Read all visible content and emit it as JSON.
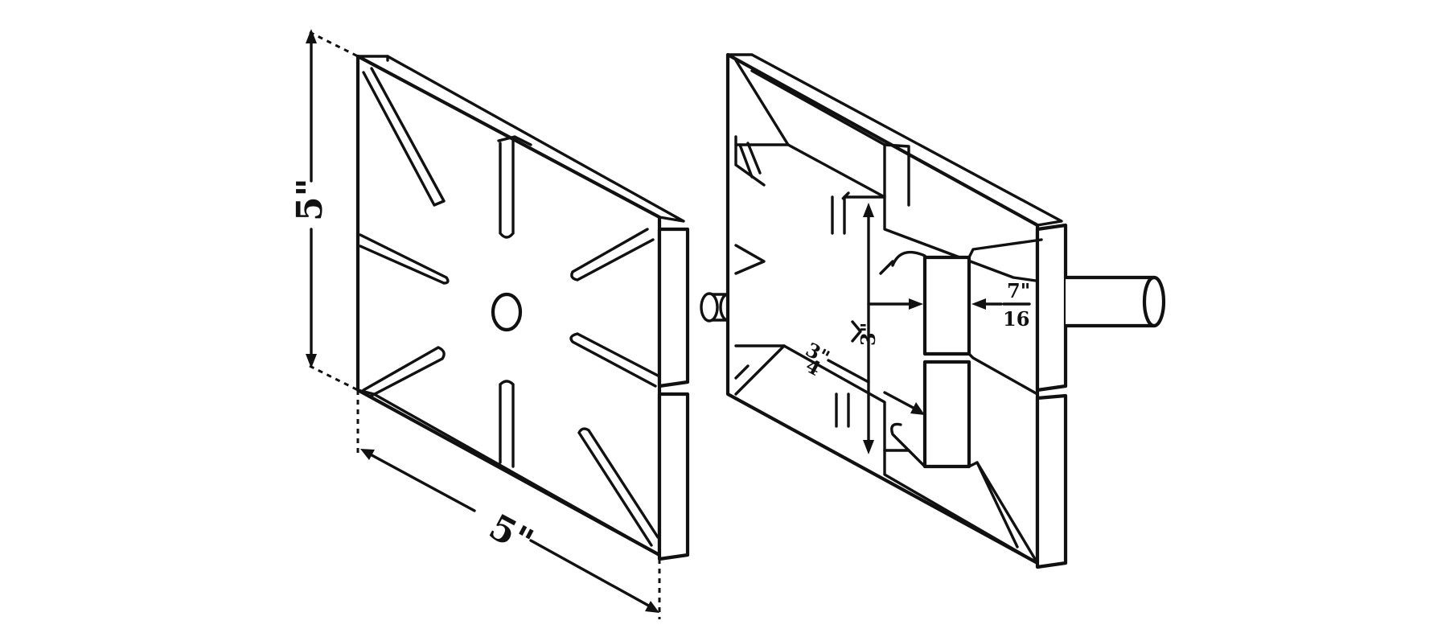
{
  "dimensions": {
    "height_label": "5\"",
    "width_label": "5\"",
    "depth_label_num": "7\"",
    "depth_label_den": "16",
    "slot_label_num": "3\"",
    "slot_label_den": "4",
    "gap_label": "3\""
  },
  "colors": {
    "ink": "#111111",
    "background": "#ffffff"
  }
}
